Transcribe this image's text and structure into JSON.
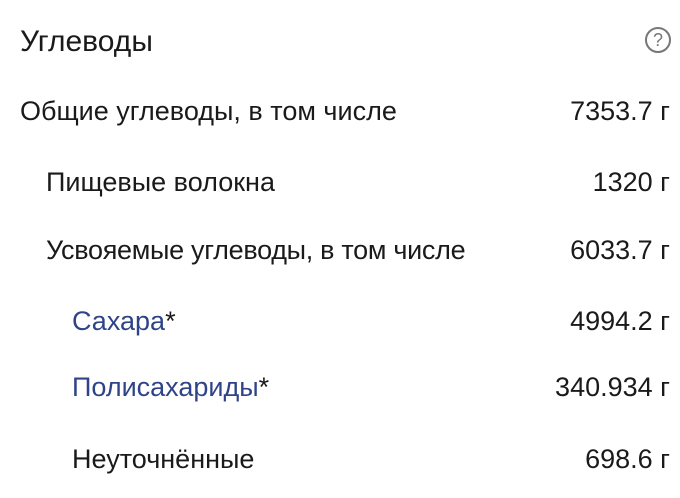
{
  "title": "Углеводы",
  "help_icon": "question-circle-icon",
  "link_color": "#2f4488",
  "rows": [
    {
      "label": "Общие углеводы, в том числе",
      "value": "7353.7 г"
    },
    {
      "label": "Пищевые волокна",
      "value": "1320 г"
    },
    {
      "label": "Усвояемые углеводы, в том числе",
      "value": "6033.7 г"
    },
    {
      "label": "Сахара",
      "marker": "*",
      "value": "4994.2 г"
    },
    {
      "label": "Полисахариды",
      "marker": "*",
      "value": "340.934 г"
    },
    {
      "label": "Неуточнённые",
      "value": "698.6 г"
    }
  ]
}
